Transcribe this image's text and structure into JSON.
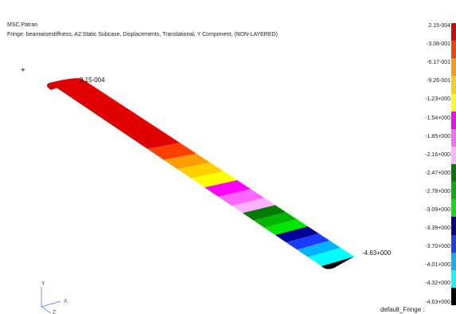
{
  "header": {
    "app_title": "MSC.Patran",
    "fringe_title": "Fringe: beamwisestiffness, A2:Static Subcase, Displacements, Translational, Y Component, (NON-LAYERED)"
  },
  "viewport": {
    "origin_marker": "+",
    "max_label": "2.15-004",
    "min_label": "-4.63+000",
    "axis_y": "Y",
    "axis_x": "X",
    "axis_z": "Z"
  },
  "legend": {
    "labels": [
      "2.15-004",
      "-3.08-001",
      "-6.17-001",
      "-9.26-001",
      "-1.23+000",
      "-1.54+000",
      "-1.85+000",
      "-2.16+000",
      "-2.47+000",
      "-2.78+000",
      "-3.09+000",
      "-3.39+000",
      "-3.70+000",
      "-4.01+000",
      "-4.32+000",
      "-4.63+000"
    ],
    "colors": [
      "#e00000",
      "#ff4000",
      "#ff9c00",
      "#ffd000",
      "#ffff00",
      "#ff00ff",
      "#ff66ff",
      "#ffb3ff",
      "#007a00",
      "#00b400",
      "#00e600",
      "#000099",
      "#1a3cff",
      "#00b4ff",
      "#00ffff",
      "#000000"
    ],
    "footer": "default_Fringe :"
  }
}
